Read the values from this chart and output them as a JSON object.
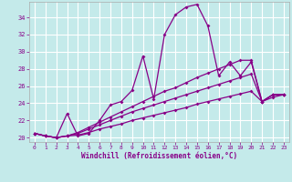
{
  "xlabel": "Windchill (Refroidissement éolien,°C)",
  "background_color": "#c4eaea",
  "line_color": "#880088",
  "grid_color": "#ffffff",
  "xlim_min": -0.5,
  "xlim_max": 23.5,
  "ylim_min": 19.5,
  "ylim_max": 35.8,
  "xticks": [
    0,
    1,
    2,
    3,
    4,
    5,
    6,
    7,
    8,
    9,
    10,
    11,
    12,
    13,
    14,
    15,
    16,
    17,
    18,
    19,
    20,
    21,
    22,
    23
  ],
  "yticks": [
    20,
    22,
    24,
    26,
    28,
    30,
    32,
    34
  ],
  "line1_y": [
    20.5,
    20.2,
    20.0,
    22.8,
    20.2,
    20.5,
    22.0,
    23.8,
    24.2,
    25.5,
    29.5,
    24.5,
    32.0,
    34.3,
    35.2,
    35.5,
    33.0,
    27.2,
    28.8,
    27.2,
    28.8,
    24.2,
    25.0,
    25.0
  ],
  "line2_y": [
    20.5,
    20.2,
    20.0,
    20.2,
    20.3,
    20.6,
    21.0,
    21.3,
    21.6,
    22.0,
    22.3,
    22.6,
    22.9,
    23.2,
    23.5,
    23.9,
    24.2,
    24.5,
    24.8,
    25.1,
    25.4,
    24.2,
    24.7,
    25.0
  ],
  "line3_y": [
    20.5,
    20.2,
    20.0,
    20.2,
    20.5,
    21.0,
    21.5,
    22.0,
    22.5,
    23.0,
    23.4,
    23.8,
    24.2,
    24.6,
    25.0,
    25.4,
    25.8,
    26.2,
    26.6,
    27.0,
    27.4,
    24.2,
    25.0,
    25.0
  ],
  "line4_y": [
    20.5,
    20.2,
    20.0,
    20.2,
    20.6,
    21.2,
    21.8,
    22.4,
    23.0,
    23.6,
    24.2,
    24.8,
    25.4,
    25.8,
    26.4,
    27.0,
    27.5,
    28.0,
    28.5,
    29.0,
    29.0,
    24.2,
    25.0,
    25.0
  ]
}
